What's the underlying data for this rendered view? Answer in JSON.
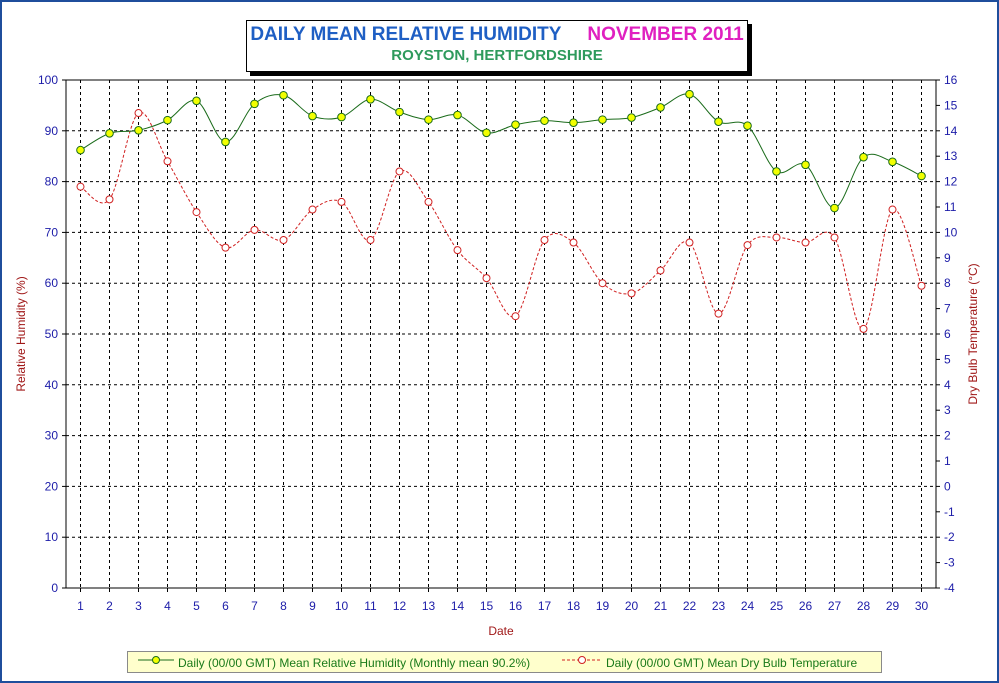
{
  "header": {
    "title_main": "DAILY MEAN RELATIVE HUMIDITY",
    "title_month": "NOVEMBER 2011",
    "subtitle": "ROYSTON, HERTFORDSHIRE"
  },
  "colors": {
    "title_main": "#1f5fc4",
    "title_month": "#e020c0",
    "subtitle": "#2e9a5c",
    "humidity_line": "#1a6b1a",
    "humidity_marker": "#f2ff00",
    "temperature_line": "#d02020",
    "legend_bg": "#ffffcc",
    "frame": "#1f4e9c"
  },
  "chart_data": {
    "type": "line",
    "xlabel": "Date",
    "ylabel": "Relative Humidity (%)",
    "y2label": "Dry Bulb Temperature (°C)",
    "x": [
      1,
      2,
      3,
      4,
      5,
      6,
      7,
      8,
      9,
      10,
      11,
      12,
      13,
      14,
      15,
      16,
      17,
      18,
      19,
      20,
      21,
      22,
      23,
      24,
      25,
      26,
      27,
      28,
      29,
      30
    ],
    "ylim": [
      0,
      100
    ],
    "yticks": [
      0,
      10,
      20,
      30,
      40,
      50,
      60,
      70,
      80,
      90,
      100
    ],
    "y2lim": [
      -4,
      16
    ],
    "y2ticks": [
      -4,
      -3,
      -2,
      -1,
      0,
      1,
      2,
      3,
      4,
      5,
      6,
      7,
      8,
      9,
      10,
      11,
      12,
      13,
      14,
      15,
      16
    ],
    "grid": true,
    "legend_position": "bottom",
    "series": [
      {
        "name": "Daily (00/00 GMT) Mean Relative Humidity (Monthly mean 90.2%)",
        "axis": "left",
        "style": "solid",
        "marker": "filled-circle",
        "values": [
          86.2,
          89.5,
          90.1,
          92.1,
          95.9,
          87.8,
          95.3,
          97.0,
          92.9,
          92.7,
          96.2,
          93.7,
          92.2,
          93.1,
          89.6,
          91.2,
          92.0,
          91.6,
          92.2,
          92.6,
          94.6,
          97.2,
          91.8,
          91.0,
          82.0,
          83.3,
          74.8,
          84.8,
          83.9,
          81.1
        ]
      },
      {
        "name": "Daily (00/00 GMT) Mean Dry Bulb Temperature",
        "axis": "right",
        "style": "dashed",
        "marker": "open-circle",
        "values": [
          11.8,
          11.3,
          14.7,
          12.8,
          10.8,
          9.4,
          10.1,
          9.7,
          10.9,
          11.2,
          9.7,
          12.4,
          11.2,
          9.3,
          8.2,
          6.7,
          9.7,
          9.6,
          8.0,
          7.6,
          8.5,
          9.6,
          6.8,
          9.5,
          9.8,
          9.6,
          9.8,
          6.2,
          10.9,
          7.9
        ]
      }
    ]
  }
}
